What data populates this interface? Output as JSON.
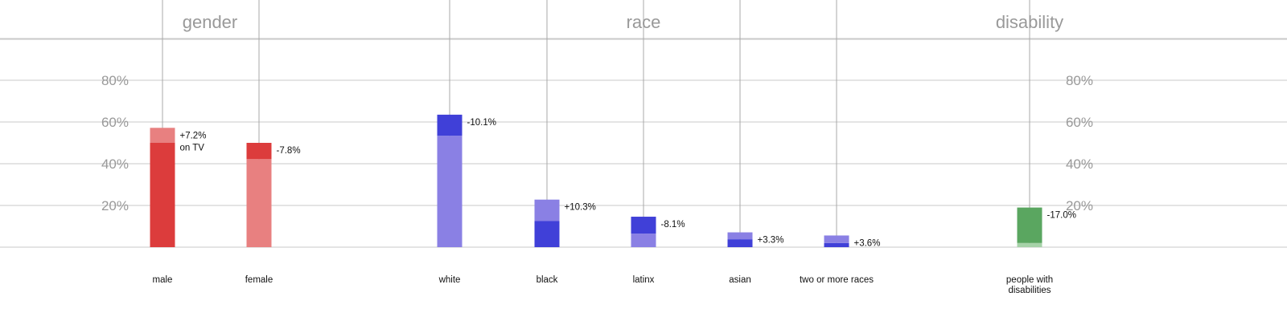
{
  "chart_data": {
    "type": "bar",
    "ylim": [
      0,
      100
    ],
    "y_ticks": [
      {
        "value": 20,
        "label": "20%"
      },
      {
        "value": 40,
        "label": "40%"
      },
      {
        "value": 60,
        "label": "60%"
      },
      {
        "value": 80,
        "label": "80%"
      }
    ],
    "groups": [
      {
        "title": "gender",
        "members": [
          "male",
          "female"
        ]
      },
      {
        "title": "race",
        "members": [
          "white",
          "black",
          "latinx",
          "asian",
          "two or more races"
        ]
      },
      {
        "title": "disability",
        "members": [
          "people with disabilities"
        ]
      }
    ],
    "bars": [
      {
        "category": "male",
        "label_lines": [
          "male"
        ],
        "group": "gender",
        "population": 50,
        "tv": 57.2,
        "difference": "+7.2%",
        "difference_note": "on TV"
      },
      {
        "category": "female",
        "label_lines": [
          "female"
        ],
        "group": "gender",
        "population": 50,
        "tv": 42.2,
        "difference": "-7.8%"
      },
      {
        "category": "white",
        "label_lines": [
          "white"
        ],
        "group": "race",
        "population": 63.5,
        "tv": 53.4,
        "difference": "-10.1%"
      },
      {
        "category": "black",
        "label_lines": [
          "black"
        ],
        "group": "race",
        "population": 12.5,
        "tv": 22.8,
        "difference": "+10.3%"
      },
      {
        "category": "latinx",
        "label_lines": [
          "latinx"
        ],
        "group": "race",
        "population": 14.6,
        "tv": 6.5,
        "difference": "-8.1%"
      },
      {
        "category": "asian",
        "label_lines": [
          "asian"
        ],
        "group": "race",
        "population": 3.8,
        "tv": 7.1,
        "difference": "+3.3%"
      },
      {
        "category": "two or more races",
        "label_lines": [
          "two or more races"
        ],
        "group": "race",
        "population": 2.0,
        "tv": 5.6,
        "difference": "+3.6%"
      },
      {
        "category": "people with disabilities",
        "label_lines": [
          "people with",
          "disabilities"
        ],
        "group": "disability",
        "population": 19.0,
        "tv": 2.0,
        "difference": "-17.0%"
      }
    ],
    "colors": {
      "gender_dark": "#dc3c3c",
      "gender_light": "#e88080",
      "race_dark": "#4040d8",
      "race_light": "#8a80e4",
      "disability_dark": "#5aa660",
      "disability_light": "#a6d2a8",
      "grid": "#c8c8c8",
      "tick_text": "#999999"
    }
  }
}
